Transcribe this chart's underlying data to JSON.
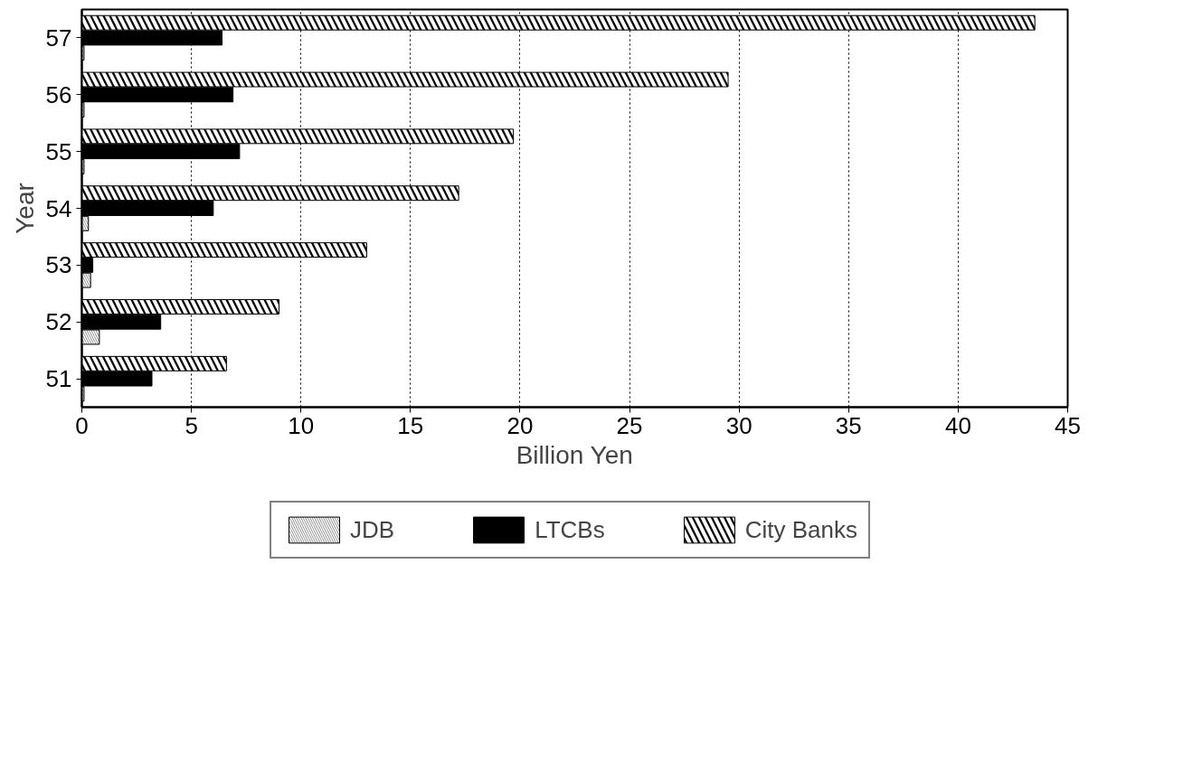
{
  "chart_data": {
    "type": "bar",
    "orientation": "horizontal",
    "xlabel": "Billion Yen",
    "ylabel": "Year",
    "categories": [
      "57",
      "56",
      "55",
      "54",
      "53",
      "52",
      "51"
    ],
    "series": [
      {
        "name": "JDB",
        "color": "#7f7f7f",
        "values": [
          0.1,
          0.1,
          0.1,
          0.3,
          0.4,
          0.8,
          0.1
        ]
      },
      {
        "name": "LTCBs",
        "color": "#000000",
        "values": [
          6.4,
          6.9,
          7.2,
          6.0,
          0.5,
          3.6,
          3.2
        ]
      },
      {
        "name": "City Banks",
        "color": "#000000",
        "values": [
          43.5,
          29.5,
          19.7,
          17.2,
          13.0,
          9.0,
          6.6
        ]
      }
    ],
    "xlim": [
      0,
      45
    ],
    "xticks": [
      0,
      5,
      10,
      15,
      20,
      25,
      30,
      35,
      40,
      45
    ],
    "grid": "x",
    "legend": "bottom"
  }
}
